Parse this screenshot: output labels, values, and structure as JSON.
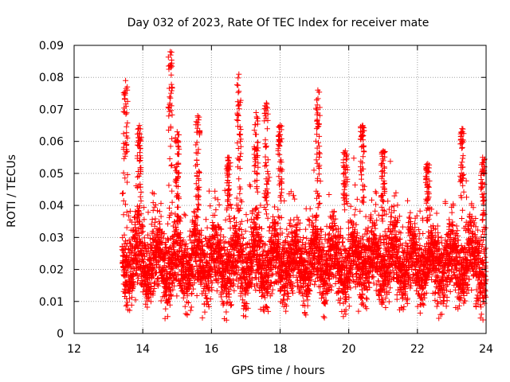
{
  "chart_data": {
    "type": "scatter",
    "title": "Day 032 of 2023, Rate Of TEC Index for receiver mate",
    "xlabel": "GPS time / hours",
    "ylabel": "ROTI / TECUs",
    "xlim": [
      12,
      24
    ],
    "ylim": [
      0,
      0.09
    ],
    "xticks": [
      12,
      14,
      16,
      18,
      20,
      22,
      24
    ],
    "yticks": [
      0,
      0.01,
      0.02,
      0.03,
      0.04,
      0.05,
      0.06,
      0.07,
      0.08,
      0.09
    ],
    "xtick_labels": [
      "12",
      "14",
      "16",
      "18",
      "20",
      "22",
      "24"
    ],
    "ytick_labels": [
      "0",
      "0.01",
      "0.02",
      "0.03",
      "0.04",
      "0.05",
      "0.06",
      "0.07",
      "0.08",
      "0.09"
    ],
    "grid": true,
    "marker": "+",
    "color": "#ff0000",
    "series": [
      {
        "name": "ROTI",
        "x_range": [
          13.4,
          24.0
        ],
        "approx_points": 5000,
        "baseline": 0.022,
        "bursts": [
          {
            "x": 13.5,
            "peak": 0.079
          },
          {
            "x": 13.9,
            "peak": 0.065
          },
          {
            "x": 14.8,
            "peak": 0.088
          },
          {
            "x": 15.0,
            "peak": 0.063
          },
          {
            "x": 15.6,
            "peak": 0.068
          },
          {
            "x": 16.5,
            "peak": 0.055
          },
          {
            "x": 16.8,
            "peak": 0.081
          },
          {
            "x": 17.3,
            "peak": 0.069
          },
          {
            "x": 17.6,
            "peak": 0.072
          },
          {
            "x": 18.0,
            "peak": 0.065
          },
          {
            "x": 19.1,
            "peak": 0.076
          },
          {
            "x": 19.9,
            "peak": 0.057
          },
          {
            "x": 20.4,
            "peak": 0.065
          },
          {
            "x": 21.0,
            "peak": 0.057
          },
          {
            "x": 22.3,
            "peak": 0.053
          },
          {
            "x": 23.3,
            "peak": 0.064
          },
          {
            "x": 23.9,
            "peak": 0.055
          }
        ]
      }
    ]
  }
}
